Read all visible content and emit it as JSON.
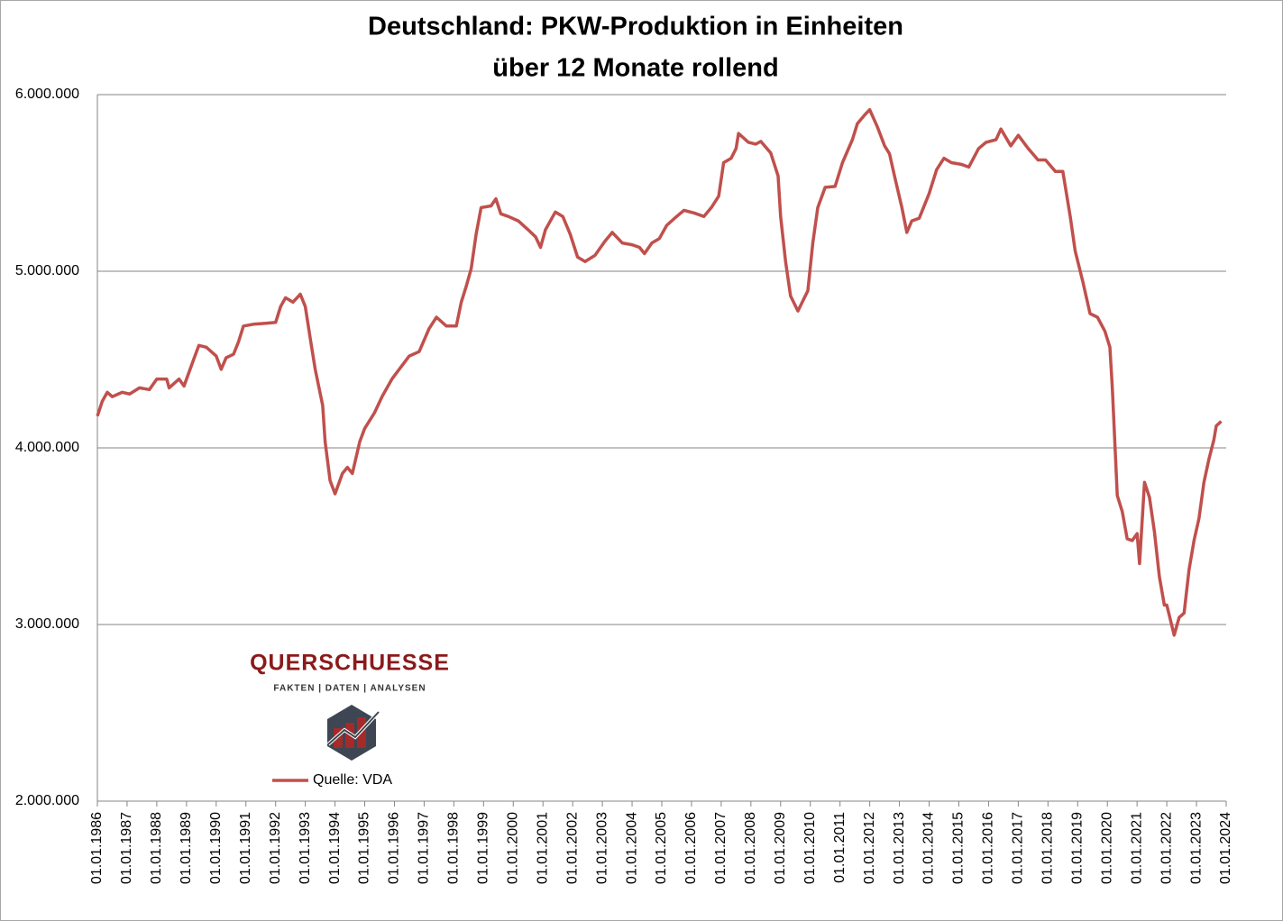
{
  "chart_data": {
    "type": "line",
    "title": "Deutschland: PKW-Produktion in Einheiten",
    "subtitle": "über 12 Monate rollend",
    "logo_title": "QUERSCHUESSE",
    "logo_tagline": "FAKTEN | DATEN | ANALYSEN",
    "grid": true,
    "xlim": [
      "01.01.1986",
      "01.01.2024"
    ],
    "xticks": [
      "01.01.1986",
      "01.01.1987",
      "01.01.1988",
      "01.01.1989",
      "01.01.1990",
      "01.01.1991",
      "01.01.1992",
      "01.01.1993",
      "01.01.1994",
      "01.01.1995",
      "01.01.1996",
      "01.01.1997",
      "01.01.1998",
      "01.01.1999",
      "01.01.2000",
      "01.01.2001",
      "01.01.2002",
      "01.01.2003",
      "01.01.2004",
      "01.01.2005",
      "01.01.2006",
      "01.01.2007",
      "01.01.2008",
      "01.01.2009",
      "01.01.2010",
      "01.01.2011",
      "01.01.2012",
      "01.01.2013",
      "01.01.2014",
      "01.01.2015",
      "01.01.2016",
      "01.01.2017",
      "01.01.2018",
      "01.01.2019",
      "01.01.2020",
      "01.01.2021",
      "01.01.2022",
      "01.01.2023",
      "01.01.2024"
    ],
    "ylim": [
      2000000,
      6000000
    ],
    "yticks": [
      {
        "value": 2000000,
        "label": "2.000.000"
      },
      {
        "value": 3000000,
        "label": "3.000.000"
      },
      {
        "value": 4000000,
        "label": "4.000.000"
      },
      {
        "value": 5000000,
        "label": "5.000.000"
      },
      {
        "value": 6000000,
        "label": "6.000.000"
      }
    ],
    "x": [
      "01.01.1986",
      "01.03.1986",
      "01.05.1986",
      "01.07.1986",
      "01.11.1986",
      "01.02.1987",
      "01.06.1987",
      "01.10.1987",
      "01.01.1988",
      "01.05.1988",
      "01.06.1988",
      "01.10.1988",
      "01.12.1988",
      "01.04.1989",
      "01.06.1989",
      "01.09.1989",
      "01.01.1990",
      "01.03.1990",
      "01.05.1990",
      "01.08.1990",
      "01.10.1990",
      "01.12.1990",
      "01.04.1991",
      "01.09.1991",
      "01.01.1992",
      "01.03.1992",
      "01.05.1992",
      "01.08.1992",
      "01.11.1992",
      "01.01.1993",
      "01.03.1993",
      "01.05.1993",
      "01.08.1993",
      "01.09.1993",
      "01.11.1993",
      "01.01.1994",
      "01.04.1994",
      "01.06.1994",
      "01.08.1994",
      "01.11.1994",
      "01.01.1995",
      "01.05.1995",
      "01.08.1995",
      "01.12.1995",
      "01.04.1996",
      "01.07.1996",
      "01.11.1996",
      "01.03.1997",
      "01.06.1997",
      "01.10.1997",
      "01.02.1998",
      "01.04.1998",
      "01.06.1998",
      "01.08.1998",
      "01.10.1998",
      "01.12.1998",
      "01.04.1999",
      "01.06.1999",
      "01.08.1999",
      "01.11.1999",
      "01.03.2000",
      "01.07.2000",
      "01.10.2000",
      "01.12.2000",
      "01.02.2001",
      "01.06.2001",
      "01.09.2001",
      "01.12.2001",
      "01.03.2002",
      "01.06.2002",
      "01.10.2002",
      "01.02.2003",
      "01.05.2003",
      "01.09.2003",
      "01.01.2004",
      "01.04.2004",
      "01.06.2004",
      "01.09.2004",
      "01.12.2004",
      "01.03.2005",
      "01.07.2005",
      "01.10.2005",
      "01.02.2006",
      "01.06.2006",
      "01.09.2006",
      "01.12.2006",
      "01.02.2007",
      "01.05.2007",
      "01.07.2007",
      "01.08.2007",
      "01.12.2007",
      "01.03.2008",
      "01.05.2008",
      "01.09.2008",
      "01.12.2008",
      "01.01.2009",
      "01.03.2009",
      "01.05.2009",
      "01.08.2009",
      "01.12.2009",
      "01.02.2010",
      "01.04.2010",
      "01.07.2010",
      "01.11.2010",
      "01.02.2011",
      "01.06.2011",
      "01.08.2011",
      "01.11.2011",
      "01.01.2012",
      "01.04.2012",
      "01.07.2012",
      "01.09.2012",
      "01.11.2012",
      "01.02.2013",
      "01.04.2013",
      "01.06.2013",
      "01.09.2013",
      "01.01.2014",
      "01.04.2014",
      "01.07.2014",
      "01.10.2014",
      "01.02.2015",
      "01.05.2015",
      "01.09.2015",
      "01.12.2015",
      "01.04.2016",
      "01.06.2016",
      "01.10.2016",
      "01.01.2017",
      "01.05.2017",
      "01.09.2017",
      "01.12.2017",
      "01.04.2018",
      "01.07.2018",
      "01.10.2018",
      "01.12.2018",
      "01.03.2019",
      "01.06.2019",
      "01.09.2019",
      "01.12.2019",
      "01.02.2020",
      "01.03.2020",
      "01.05.2020",
      "01.07.2020",
      "01.09.2020",
      "01.11.2020",
      "01.01.2021",
      "01.02.2021",
      "01.04.2021",
      "01.06.2021",
      "01.08.2021",
      "01.10.2021",
      "01.12.2021",
      "01.01.2022",
      "01.04.2022",
      "01.06.2022",
      "01.08.2022",
      "01.10.2022",
      "01.12.2022",
      "01.02.2023",
      "01.04.2023",
      "01.06.2023",
      "01.08.2023",
      "01.09.2023",
      "01.11.2023"
    ],
    "series": [
      {
        "name": "Quelle: VDA",
        "color": "#c0504d",
        "values": [
          4180000,
          4265000,
          4315000,
          4290000,
          4315000,
          4305000,
          4340000,
          4330000,
          4390000,
          4390000,
          4340000,
          4390000,
          4350000,
          4505000,
          4580000,
          4570000,
          4520000,
          4445000,
          4510000,
          4530000,
          4600000,
          4690000,
          4700000,
          4705000,
          4710000,
          4800000,
          4850000,
          4825000,
          4870000,
          4800000,
          4620000,
          4445000,
          4240000,
          4035000,
          3815000,
          3740000,
          3855000,
          3890000,
          3855000,
          4035000,
          4110000,
          4200000,
          4290000,
          4390000,
          4465000,
          4520000,
          4545000,
          4675000,
          4740000,
          4690000,
          4690000,
          4825000,
          4915000,
          5015000,
          5210000,
          5360000,
          5370000,
          5410000,
          5325000,
          5310000,
          5285000,
          5235000,
          5195000,
          5135000,
          5235000,
          5335000,
          5310000,
          5210000,
          5080000,
          5055000,
          5090000,
          5170000,
          5220000,
          5160000,
          5150000,
          5135000,
          5100000,
          5160000,
          5185000,
          5260000,
          5310000,
          5345000,
          5330000,
          5310000,
          5360000,
          5425000,
          5615000,
          5640000,
          5695000,
          5780000,
          5730000,
          5720000,
          5735000,
          5670000,
          5540000,
          5310000,
          5055000,
          4860000,
          4775000,
          4890000,
          5160000,
          5360000,
          5475000,
          5480000,
          5615000,
          5745000,
          5835000,
          5885000,
          5915000,
          5820000,
          5710000,
          5665000,
          5540000,
          5360000,
          5220000,
          5285000,
          5300000,
          5440000,
          5575000,
          5640000,
          5615000,
          5605000,
          5590000,
          5695000,
          5730000,
          5745000,
          5805000,
          5710000,
          5770000,
          5695000,
          5630000,
          5630000,
          5565000,
          5565000,
          5310000,
          5115000,
          4945000,
          4760000,
          4740000,
          4660000,
          4570000,
          4340000,
          3730000,
          3640000,
          3485000,
          3475000,
          3515000,
          3345000,
          3805000,
          3720000,
          3525000,
          3270000,
          3110000,
          3110000,
          2940000,
          3040000,
          3065000,
          3310000,
          3475000,
          3600000,
          3805000,
          3935000,
          4045000,
          4125000,
          4150000
        ]
      }
    ]
  }
}
